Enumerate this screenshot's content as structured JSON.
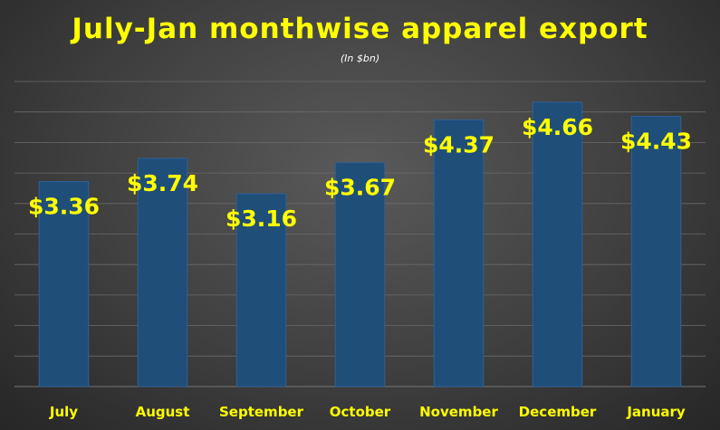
{
  "chart_data": {
    "type": "bar",
    "title": "July-Jan monthwise apparel export",
    "subtitle": "(In $bn)",
    "categories": [
      "July",
      "August",
      "September",
      "October",
      "November",
      "December",
      "January"
    ],
    "values": [
      3.36,
      3.74,
      3.16,
      3.67,
      4.37,
      4.66,
      4.43
    ],
    "data_labels": [
      "$3.36",
      "$3.74",
      "$3.16",
      "$3.67",
      "$4.37",
      "$4.66",
      "$4.43"
    ],
    "ylim": [
      0,
      5
    ],
    "grid": true,
    "colors": {
      "bar": "#1f4e79",
      "bar_edge": "#2f6096",
      "title": "#ffff00",
      "data_label": "#ffff00",
      "tick_label": "#ffff00",
      "grid": "#6a6a6a"
    }
  }
}
